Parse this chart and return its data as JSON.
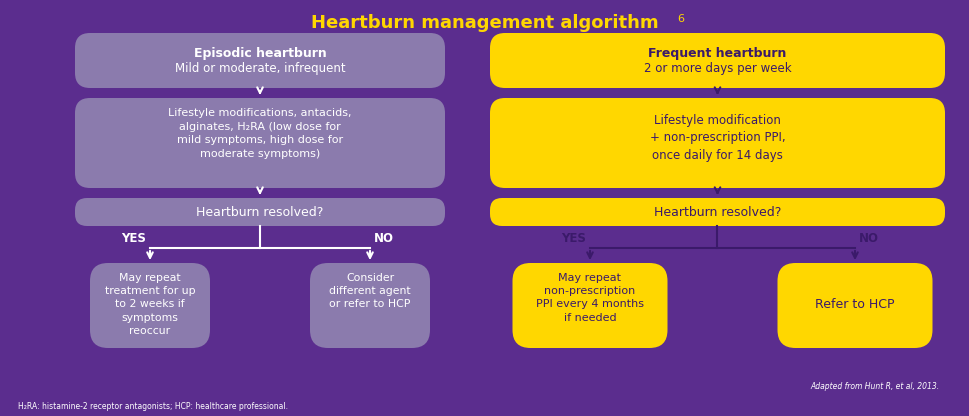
{
  "title": "Heartburn management algorithm",
  "title_superscript": "6",
  "bg_color": "#5B2D8E",
  "yellow_color": "#FFD700",
  "gray_color": "#8B7BAD",
  "white_color": "#FFFFFF",
  "dark_purple_text": "#3B1A6A",
  "footnote1": "Adapted from Hunt R, et al, 2013.",
  "footnote2": "H₂RA: histamine-2 receptor antagonists; HCP: healthcare professional.",
  "boxes": {
    "episodic_title": "Episodic heartburn",
    "episodic_sub": "Mild or moderate, infrequent",
    "frequent_title": "Frequent heartburn",
    "frequent_sub": "2 or more days per week",
    "left_step2": "Lifestyle modifications, antacids,\nalginates, H₂RA (low dose for\nmild symptoms, high dose for\nmoderate symptoms)",
    "right_step2": "Lifestyle modification\n+ non-prescription PPI,\nonce daily for 14 days",
    "left_resolved": "Heartburn resolved?",
    "right_resolved": "Heartburn resolved?",
    "left_yes": "May repeat\ntreatment for up\nto 2 weeks if\nsymptoms\nreoccur",
    "left_no": "Consider\ndifferent agent\nor refer to HCP",
    "right_yes": "May repeat\nnon-prescription\nPPI every 4 months\nif needed",
    "right_no": "Refer to HCP"
  }
}
